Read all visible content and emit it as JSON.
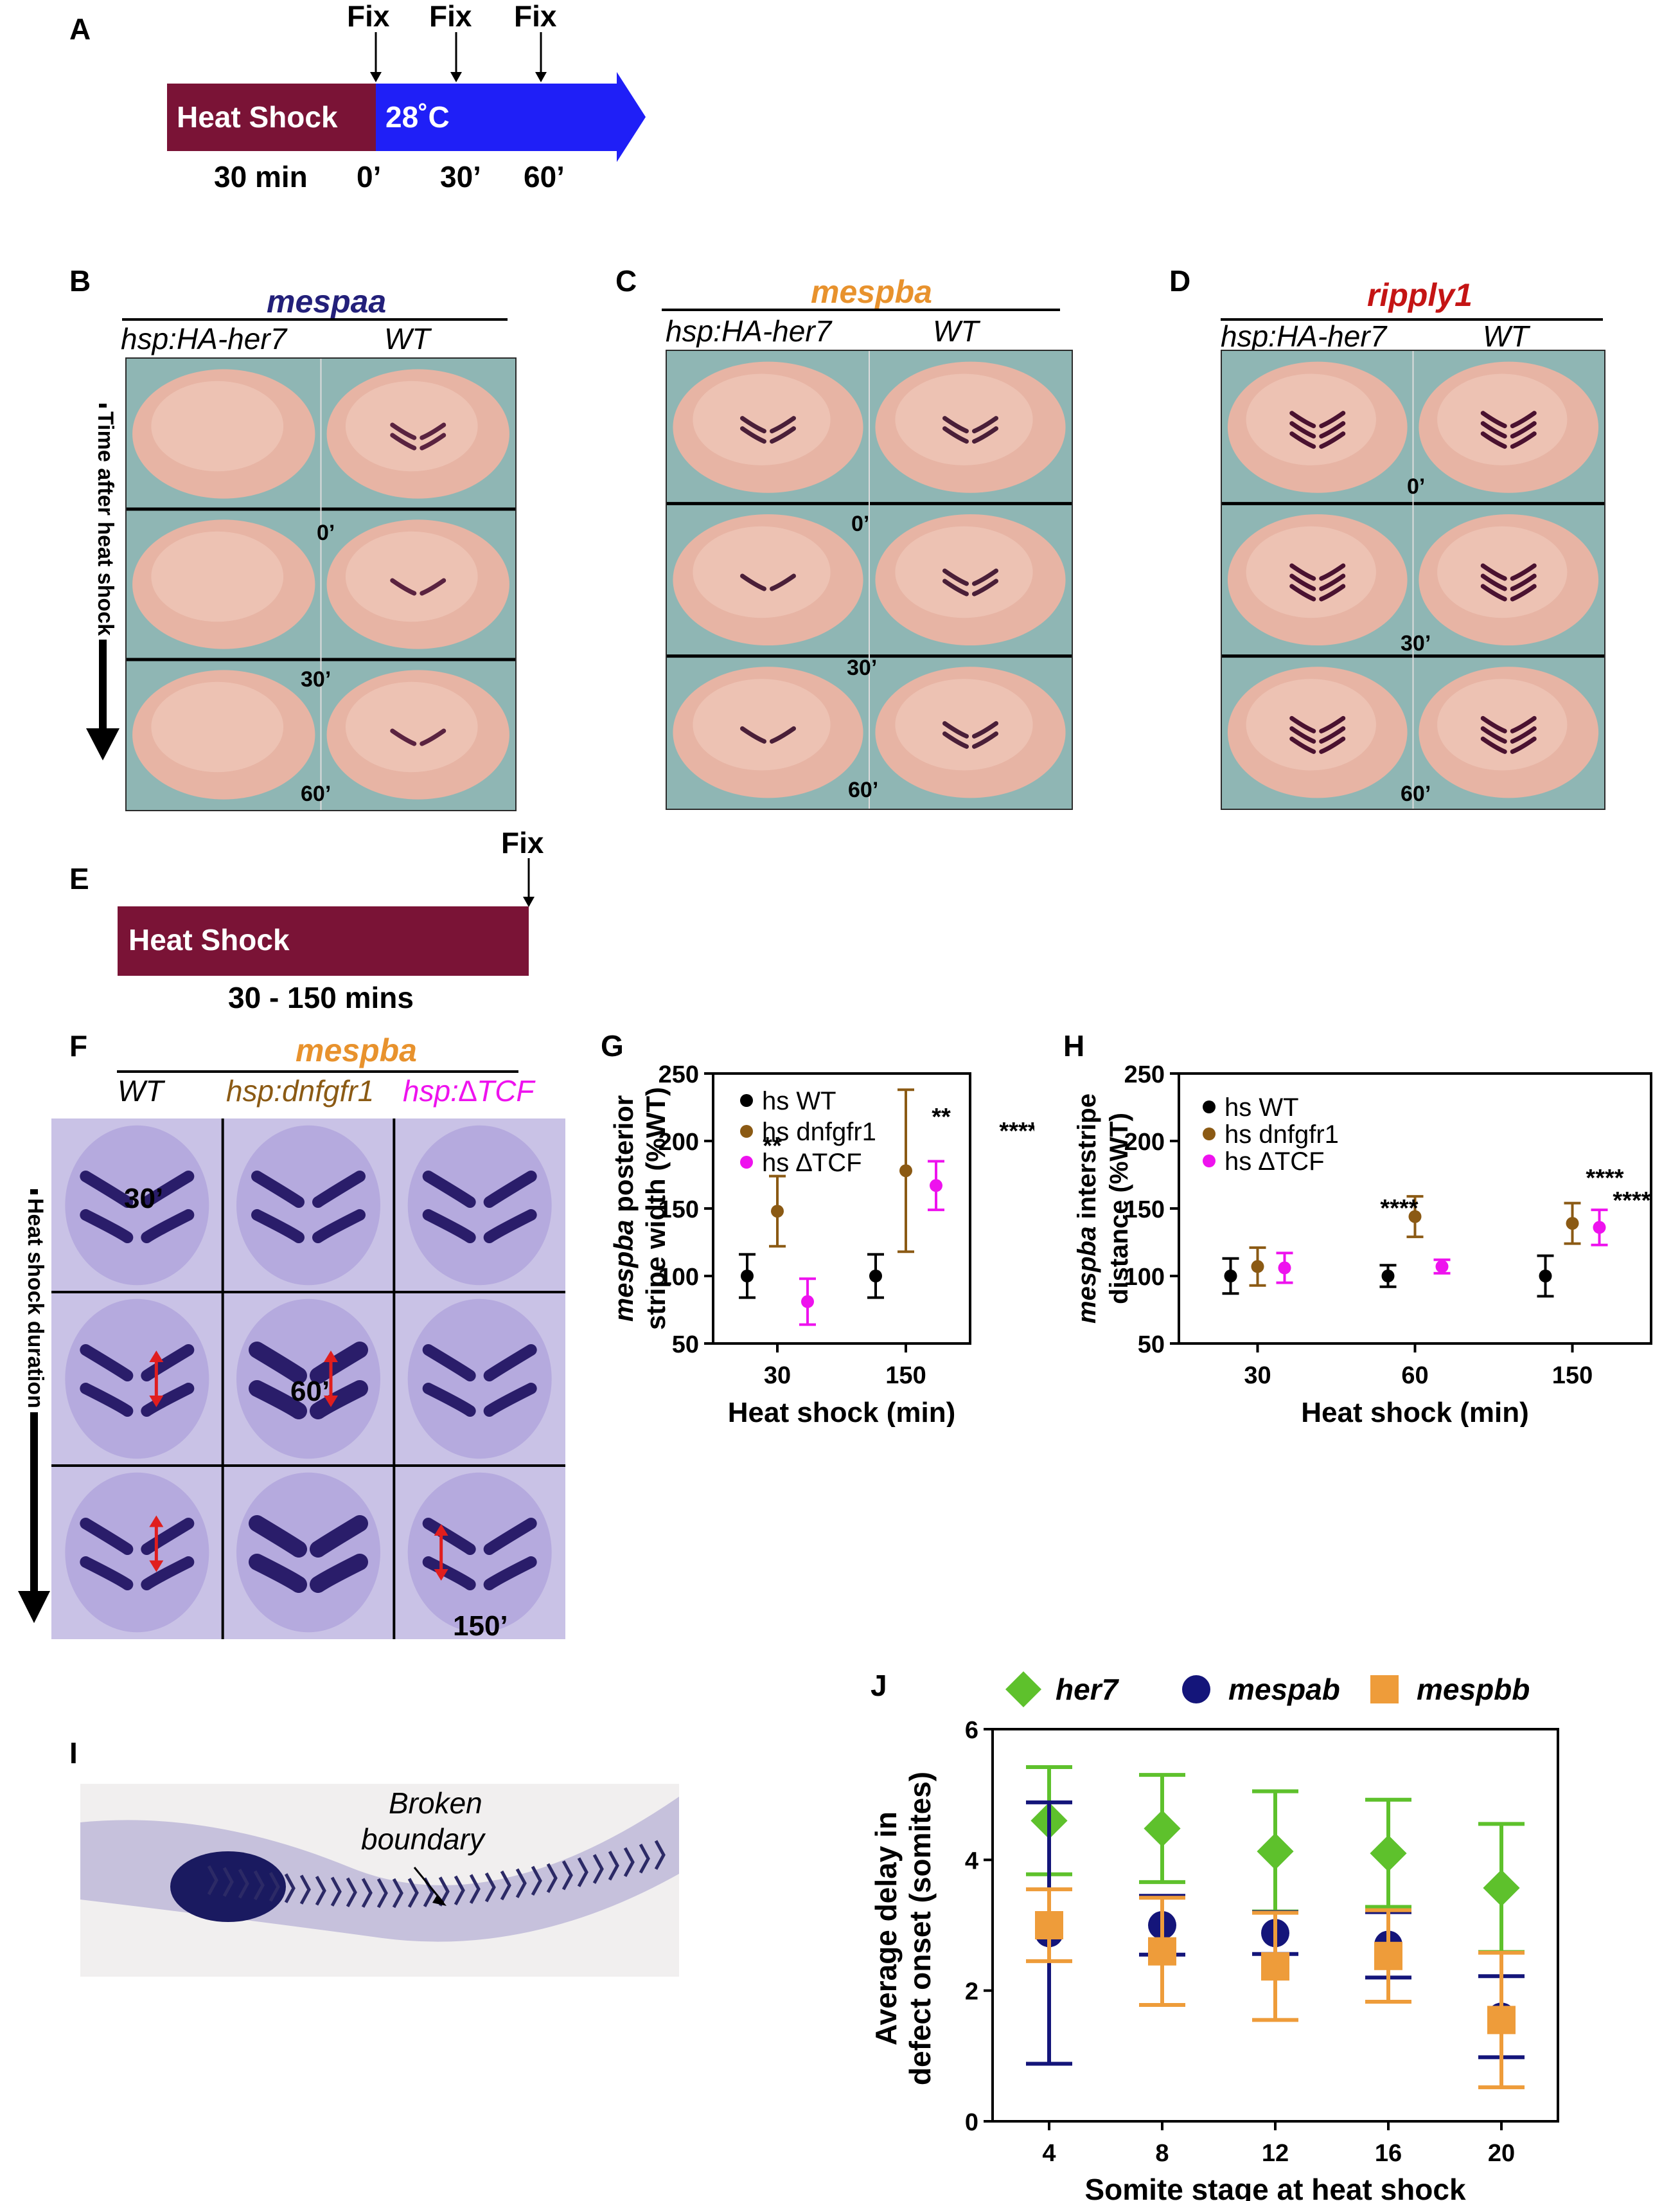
{
  "panels": [
    "A",
    "B",
    "C",
    "D",
    "E",
    "F",
    "G",
    "H",
    "I",
    "J"
  ],
  "colors": {
    "heat_shock": "#7a1336",
    "temp_arrow": "#1f1ff7",
    "mespaa": "#23207a",
    "mespba": "#e8922d",
    "ripply1": "#c41414",
    "wt": "#000000",
    "dnfgfr1": "#8b5a14",
    "dtcf": "#ee12ee",
    "her7": "#5ec12c",
    "mespab": "#14157a",
    "mespbb": "#ee9c3a",
    "embryo_bg": "#8fb6b4",
    "ish_bg": "#c9c2e6",
    "red_arrow": "#e01e1e"
  },
  "panel_a": {
    "fix_labels": [
      "Fix",
      "Fix",
      "Fix"
    ],
    "heat_shock_label": "Heat Shock",
    "temp_label": "28˚C",
    "time_labels": [
      "30 min",
      "0’",
      "30’",
      "60’"
    ]
  },
  "panel_b": {
    "gene": "mespaa",
    "col_labels": [
      "hsp:HA-her7",
      "WT"
    ],
    "row_labels": [
      "0’",
      "30’",
      "60’"
    ],
    "side_label": "Time after heat shock"
  },
  "panel_c": {
    "gene": "mespba",
    "col_labels": [
      "hsp:HA-her7",
      "WT"
    ],
    "row_labels": [
      "0’",
      "30’",
      "60’"
    ]
  },
  "panel_d": {
    "gene": "ripply1",
    "col_labels": [
      "hsp:HA-her7",
      "WT"
    ],
    "row_labels": [
      "0’",
      "30’",
      "60’"
    ]
  },
  "panel_e": {
    "fix_label": "Fix",
    "heat_shock_label": "Heat Shock",
    "duration_label": "30 - 150 mins"
  },
  "panel_f": {
    "gene": "mespba",
    "col_labels": [
      "WT",
      "hsp:dnfgfr1",
      "hsp:∆TCF"
    ],
    "row_labels": [
      "30’",
      "60’",
      "150’"
    ],
    "side_label": "Heat shock duration"
  },
  "panel_i": {
    "annotation_line1": "Broken",
    "annotation_line2": "boundary"
  },
  "chart_data": [
    {
      "panel": "G",
      "type": "scatter",
      "ylabel_gene": "mespba",
      "ylabel_rest": " posterior",
      "ylabel_line2": "stripe width (%WT)",
      "xlabel": "Heat shock (min)",
      "categories": [
        "30",
        "150"
      ],
      "ylim": [
        50,
        250
      ],
      "yticks": [
        50,
        100,
        150,
        200,
        250
      ],
      "legend": [
        "hs WT",
        "hs dnfgfr1",
        "hs ∆TCF"
      ],
      "series": [
        {
          "name": "hs WT",
          "color": "#000000",
          "values": [
            100,
            100
          ],
          "err": [
            16,
            16
          ]
        },
        {
          "name": "hs dnfgfr1",
          "color": "#8b5a14",
          "values": [
            148,
            178
          ],
          "err": [
            26,
            60
          ]
        },
        {
          "name": "hs ∆TCF",
          "color": "#ee12ee",
          "values": [
            81,
            167
          ],
          "err": [
            17,
            18
          ]
        }
      ],
      "annotations": [
        "**",
        "**",
        "****"
      ]
    },
    {
      "panel": "H",
      "type": "scatter",
      "ylabel_gene": "mespba",
      "ylabel_rest": " interstripe",
      "ylabel_line2": "distance (%WT)",
      "xlabel": "Heat shock (min)",
      "categories": [
        "30",
        "60",
        "150"
      ],
      "ylim": [
        50,
        250
      ],
      "yticks": [
        50,
        100,
        150,
        200,
        250
      ],
      "legend": [
        "hs WT",
        "hs dnfgfr1",
        "hs ∆TCF"
      ],
      "series": [
        {
          "name": "hs WT",
          "color": "#000000",
          "values": [
            100,
            100,
            100
          ],
          "err": [
            13,
            8,
            15
          ]
        },
        {
          "name": "hs dnfgfr1",
          "color": "#8b5a14",
          "values": [
            107,
            144,
            139
          ],
          "err": [
            14,
            15,
            15
          ]
        },
        {
          "name": "hs ∆TCF",
          "color": "#ee12ee",
          "values": [
            106,
            107,
            136
          ],
          "err": [
            11,
            5,
            13
          ]
        }
      ],
      "annotations": [
        "****",
        "****",
        "****"
      ]
    },
    {
      "panel": "J",
      "type": "scatter",
      "ylabel_line1": "Average delay in",
      "ylabel_line2": "defect onset (somites)",
      "xlabel": "Somite stage at heat shock",
      "categories": [
        "4",
        "8",
        "12",
        "16",
        "20"
      ],
      "ylim": [
        0,
        6
      ],
      "yticks": [
        0,
        2,
        4,
        6
      ],
      "legend": [
        "her7",
        "mespab",
        "mespbb"
      ],
      "series": [
        {
          "name": "her7",
          "color": "#5ec12c",
          "values": [
            4.6,
            4.48,
            4.13,
            4.1,
            3.57
          ],
          "err": [
            0.82,
            0.82,
            0.92,
            0.82,
            0.98
          ]
        },
        {
          "name": "mespab",
          "color": "#14157a",
          "values": [
            2.88,
            3.0,
            2.88,
            2.7,
            1.6
          ],
          "err": [
            2.0,
            0.45,
            0.32,
            0.5,
            0.62
          ]
        },
        {
          "name": "mespbb",
          "color": "#ee9c3a",
          "values": [
            3.0,
            2.6,
            2.37,
            2.53,
            1.55
          ],
          "err": [
            0.55,
            0.82,
            0.82,
            0.7,
            1.03
          ]
        }
      ]
    }
  ]
}
